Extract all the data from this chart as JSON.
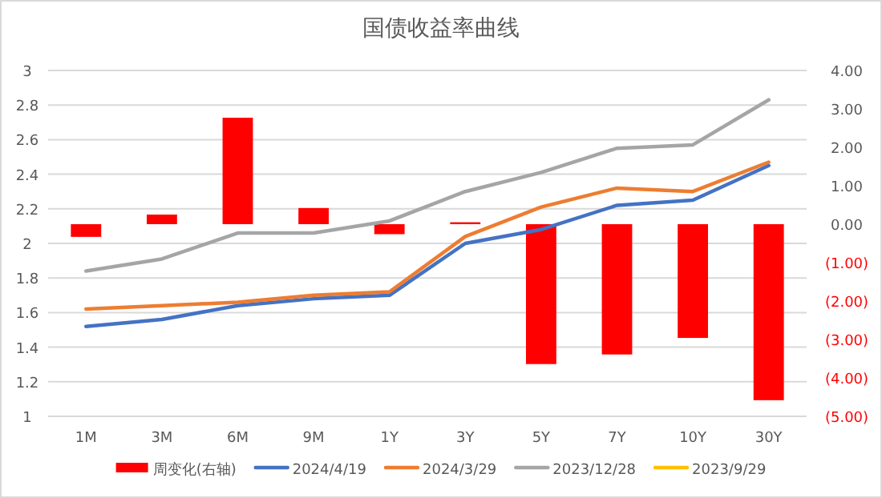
{
  "chart_data": {
    "type": "line",
    "title": "国债收益率曲线",
    "categories": [
      "1M",
      "3M",
      "6M",
      "9M",
      "1Y",
      "3Y",
      "5Y",
      "7Y",
      "10Y",
      "30Y"
    ],
    "series": [
      {
        "name": "周变化(右轴)",
        "type": "bar",
        "axis": "y2",
        "color": "#ff0000",
        "values": [
          -0.33,
          0.25,
          2.77,
          0.42,
          -0.26,
          0.05,
          -3.64,
          -3.39,
          -2.96,
          -4.58
        ]
      },
      {
        "name": "2024/4/19",
        "color": "#4472c4",
        "values": [
          1.52,
          1.56,
          1.64,
          1.68,
          1.7,
          2.0,
          2.08,
          2.22,
          2.25,
          2.45
        ]
      },
      {
        "name": "2024/3/29",
        "color": "#ed7d31",
        "values": [
          1.62,
          1.64,
          1.66,
          1.7,
          1.72,
          2.04,
          2.21,
          2.32,
          2.3,
          2.47
        ]
      },
      {
        "name": "2023/12/28",
        "color": "#a5a5a5",
        "values": [
          1.84,
          1.91,
          2.06,
          2.06,
          2.13,
          2.3,
          2.41,
          2.55,
          2.57,
          2.83
        ]
      },
      {
        "name": "2023/9/29",
        "color": "#ffc000",
        "values": [
          null,
          null,
          null,
          null,
          null,
          null,
          null,
          null,
          null,
          null
        ]
      }
    ],
    "ylim": [
      1,
      3
    ],
    "yticks": [
      1,
      1.2,
      1.4,
      1.6,
      1.8,
      2,
      2.2,
      2.4,
      2.6,
      2.8,
      3
    ],
    "y2lim": [
      -5,
      4
    ],
    "y2ticks": [
      {
        "value": -5,
        "label": "(5.00)"
      },
      {
        "value": -4,
        "label": "(4.00)"
      },
      {
        "value": -3,
        "label": "(3.00)"
      },
      {
        "value": -2,
        "label": "(2.00)"
      },
      {
        "value": -1,
        "label": "(1.00)"
      },
      {
        "value": 0,
        "label": "0.00"
      },
      {
        "value": 1,
        "label": "1.00"
      },
      {
        "value": 2,
        "label": "2.00"
      },
      {
        "value": 3,
        "label": "3.00"
      },
      {
        "value": 4,
        "label": "4.00"
      }
    ],
    "grid": "y",
    "legend": "bottom"
  }
}
